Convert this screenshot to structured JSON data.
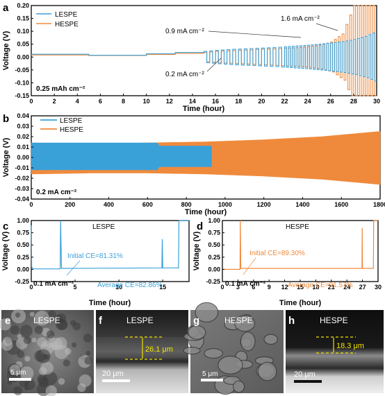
{
  "colors": {
    "lespe": "#3aa0d8",
    "hespe": "#ef8a3c",
    "axis": "#000000",
    "scale": "#ffffff",
    "marker": "#f4e400"
  },
  "panels": {
    "a": {
      "letter": "a",
      "note": "0.25 mAh cm⁻²",
      "xlabel": "Time (hour)",
      "ylabel": "Voltage (V)",
      "annotations": [
        "1.6 mA cm⁻²",
        "0.9 mA cm⁻²",
        "0.2 mA cm⁻²"
      ]
    },
    "b": {
      "letter": "b",
      "note": "0.2 mA cm⁻²",
      "xlabel": "Time (hour)",
      "ylabel": "Voltage (V)"
    },
    "c": {
      "letter": "c",
      "label": "LESPE",
      "note": "0.1 mA cm⁻²",
      "xlabel": "Time (hour)",
      "ylabel": "Voltage (V)",
      "initial_ce": "Initial CE=81.31%",
      "average_ce": "Average CE=82.86%"
    },
    "d": {
      "letter": "d",
      "label": "HESPE",
      "note": "0.1 mA cm⁻²",
      "xlabel": "Time (hour)",
      "ylabel": "Voltage (V)",
      "initial_ce": "Initial CE=89.30%",
      "average_ce": "Average CE=91.57%"
    },
    "e": {
      "letter": "e",
      "label": "LESPE",
      "scale": "5 μm"
    },
    "f": {
      "letter": "f",
      "label": "LESPE",
      "scale": "20 μm",
      "thickness": "26.1 μm"
    },
    "g": {
      "letter": "g",
      "label": "HESPE",
      "scale": "5 μm"
    },
    "h": {
      "letter": "h",
      "label": "HESPE",
      "scale": "20 μm",
      "thickness": "18.3 μm"
    }
  },
  "chart_data": [
    {
      "panel": "a",
      "type": "line",
      "xlim": [
        0,
        30
      ],
      "ylim": [
        -0.15,
        0.2
      ],
      "xticks": [
        0,
        2,
        4,
        6,
        8,
        10,
        12,
        14,
        16,
        18,
        20,
        22,
        24,
        26,
        28,
        30
      ],
      "yticks": [
        -0.15,
        -0.1,
        -0.05,
        0.0,
        0.05,
        0.1,
        0.15,
        0.2
      ],
      "legend": "top-left",
      "series": [
        {
          "name": "LESPE",
          "color": "#3aa0d8",
          "step_times": [
            0,
            5,
            10,
            12.5,
            15,
            16,
            17,
            18,
            19,
            20,
            21,
            22,
            23,
            24,
            25,
            26,
            27,
            28,
            29,
            30
          ],
          "amplitude": [
            0.011,
            0.007,
            0.013,
            0.018,
            0.022,
            0.026,
            0.029,
            0.031,
            0.033,
            0.035,
            0.037,
            0.04,
            0.043,
            0.046,
            0.05,
            0.055,
            0.06,
            0.068,
            0.08,
            0.1
          ]
        },
        {
          "name": "HESPE",
          "color": "#ef8a3c",
          "step_times": [
            0,
            5,
            10,
            12.5,
            15,
            16,
            17,
            18,
            19,
            20,
            21,
            22,
            23,
            24,
            25,
            26,
            27,
            28,
            29,
            30
          ],
          "amplitude": [
            0.008,
            0.006,
            0.01,
            0.014,
            0.018,
            0.022,
            0.024,
            0.026,
            0.028,
            0.03,
            0.032,
            0.034,
            0.036,
            0.04,
            0.046,
            0.058,
            0.09,
            0.2,
            0.2,
            0.2
          ]
        }
      ]
    },
    {
      "panel": "b",
      "type": "area",
      "xlim": [
        0,
        1800
      ],
      "ylim": [
        -0.04,
        0.04
      ],
      "xticks": [
        0,
        200,
        400,
        600,
        800,
        1000,
        1200,
        1400,
        1600,
        1800
      ],
      "yticks": [
        -0.04,
        -0.03,
        -0.02,
        -0.01,
        0.0,
        0.01,
        0.02,
        0.03,
        0.04
      ],
      "legend": "top-left",
      "series": [
        {
          "name": "LESPE",
          "color": "#3aa0d8",
          "x": [
            0,
            650,
            660,
            930
          ],
          "upper": [
            0.014,
            0.014,
            0.011,
            0.011
          ],
          "lower": [
            -0.012,
            -0.012,
            -0.009,
            -0.009
          ]
        },
        {
          "name": "HESPE",
          "color": "#ef8a3c",
          "x": [
            0,
            300,
            600,
            900,
            1200,
            1500,
            1800
          ],
          "upper": [
            0.014,
            0.013,
            0.014,
            0.015,
            0.017,
            0.02,
            0.025
          ],
          "lower": [
            -0.016,
            -0.015,
            -0.015,
            -0.016,
            -0.018,
            -0.021,
            -0.026
          ]
        }
      ]
    },
    {
      "panel": "c",
      "type": "line",
      "xlim": [
        0,
        18
      ],
      "ylim": [
        -0.25,
        1.0
      ],
      "xticks": [
        0,
        5,
        10,
        15
      ],
      "yticks": [
        -0.25,
        0.0,
        0.25,
        0.5,
        0.75,
        1.0
      ],
      "series": [
        {
          "name": "LESPE",
          "color": "#3aa0d8",
          "x": [
            0,
            0.05,
            0.2,
            3.3,
            3.35,
            3.45,
            14.9,
            14.95,
            15.0,
            16.8,
            16.85,
            18
          ],
          "y": [
            0.9,
            0.05,
            0.01,
            0.01,
            1.0,
            0.02,
            0.03,
            0.62,
            0.03,
            0.03,
            1.0,
            1.0
          ]
        }
      ]
    },
    {
      "panel": "d",
      "type": "line",
      "xlim": [
        0,
        30
      ],
      "ylim": [
        -0.25,
        1.0
      ],
      "xticks": [
        0,
        3,
        6,
        9,
        12,
        15,
        18,
        21,
        24,
        27,
        30
      ],
      "yticks": [
        -0.25,
        0.0,
        0.25,
        0.5,
        0.75,
        1.0
      ],
      "series": [
        {
          "name": "HESPE",
          "color": "#ef8a3c",
          "x": [
            0,
            3.4,
            3.45,
            3.55,
            26.9,
            26.95,
            27.0,
            29.1,
            29.15,
            30
          ],
          "y": [
            0.0,
            0.0,
            1.0,
            0.02,
            0.02,
            0.85,
            0.02,
            0.02,
            1.0,
            1.0
          ]
        }
      ]
    }
  ]
}
